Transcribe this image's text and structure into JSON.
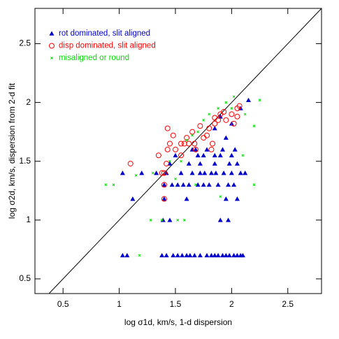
{
  "chart_data": {
    "type": "scatter",
    "x_label": "log σ1d, km/s, 1-d dispersion",
    "y_label": "log σ2d, km/s, dispersion from 2-d fit",
    "xlim": [
      0.25,
      2.8
    ],
    "ylim": [
      0.375,
      2.8
    ],
    "xticks": [
      0.5,
      1,
      1.5,
      2,
      2.5
    ],
    "yticks": [
      0.5,
      1,
      1.5,
      2,
      2.5
    ],
    "identity_line": true,
    "legend": "upper left",
    "series": [
      {
        "name": "rot dominated, slit aligned",
        "color": "#0000cc",
        "marker": "triangle",
        "x": [
          1.03,
          1.07,
          1.38,
          1.42,
          1.48,
          1.52,
          1.56,
          1.6,
          1.63,
          1.67,
          1.72,
          1.78,
          1.82,
          1.85,
          1.88,
          1.92,
          1.95,
          1.98,
          2.02,
          2.05,
          2.08,
          2.1,
          1.39,
          1.45,
          1.9,
          1.97,
          1.12,
          1.4,
          1.6,
          1.95,
          2.05,
          1.4,
          1.47,
          1.52,
          1.57,
          1.62,
          1.7,
          1.75,
          1.8,
          1.88,
          1.97,
          2.02,
          1.03,
          1.2,
          1.33,
          1.42,
          1.55,
          1.65,
          1.72,
          1.76,
          1.82,
          1.86,
          1.93,
          2.0,
          2.08,
          2.12,
          1.45,
          1.62,
          1.72,
          1.85,
          1.98,
          2.05,
          1.5,
          1.7,
          1.75,
          1.85,
          1.9,
          2.0,
          1.65,
          1.68,
          1.78,
          1.92,
          2.03,
          1.85,
          2.0,
          1.95,
          2.08,
          2.15,
          1.9
        ],
        "values": [
          0.7,
          0.7,
          0.7,
          0.7,
          0.7,
          0.7,
          0.7,
          0.7,
          0.7,
          0.7,
          0.7,
          0.7,
          0.7,
          0.7,
          0.7,
          0.7,
          0.7,
          0.7,
          0.7,
          0.7,
          0.7,
          0.7,
          1.0,
          1.0,
          1.0,
          1.0,
          1.18,
          1.18,
          1.18,
          1.18,
          1.18,
          1.3,
          1.3,
          1.3,
          1.3,
          1.3,
          1.3,
          1.3,
          1.3,
          1.3,
          1.3,
          1.3,
          1.4,
          1.4,
          1.4,
          1.4,
          1.4,
          1.4,
          1.4,
          1.4,
          1.4,
          1.4,
          1.4,
          1.4,
          1.4,
          1.4,
          1.48,
          1.48,
          1.48,
          1.48,
          1.48,
          1.48,
          1.55,
          1.55,
          1.55,
          1.55,
          1.55,
          1.55,
          1.6,
          1.6,
          1.6,
          1.6,
          1.6,
          1.78,
          1.82,
          1.7,
          1.95,
          2.02,
          1.88
        ]
      },
      {
        "name": "disp dominated, slit aligned",
        "color": "#ff0000",
        "marker": "circle",
        "x": [
          1.1,
          1.35,
          1.4,
          1.38,
          1.4,
          1.4,
          1.43,
          1.45,
          1.43,
          1.48,
          1.55,
          1.58,
          1.62,
          1.6,
          1.65,
          1.67,
          1.68,
          1.72,
          1.75,
          1.78,
          1.8,
          1.83,
          1.85,
          1.85,
          1.88,
          1.9,
          1.93,
          1.95,
          2.0,
          2.02,
          2.05,
          2.07,
          2.05,
          1.82,
          1.5,
          1.42,
          1.55
        ],
        "values": [
          1.48,
          1.55,
          1.4,
          1.4,
          1.3,
          1.18,
          1.78,
          1.65,
          1.6,
          1.72,
          1.65,
          1.65,
          1.65,
          1.7,
          1.75,
          1.65,
          1.6,
          1.8,
          1.7,
          1.72,
          1.78,
          1.65,
          1.82,
          1.87,
          1.85,
          1.9,
          1.92,
          1.85,
          1.9,
          1.82,
          1.95,
          1.97,
          1.88,
          1.6,
          1.6,
          1.48,
          1.55
        ]
      },
      {
        "name": "misaligned or round",
        "color": "#00dd00",
        "marker": "x",
        "x": [
          0.88,
          0.95,
          1.15,
          1.28,
          1.38,
          1.52,
          1.58,
          1.18,
          1.3,
          1.45,
          1.55,
          1.6,
          1.7,
          1.75,
          1.8,
          1.88,
          1.95,
          2.0,
          2.12,
          2.2,
          2.25,
          2.1,
          1.9,
          2.2,
          1.68,
          1.5,
          1.65,
          2.02
        ],
        "values": [
          1.3,
          1.3,
          1.38,
          1.0,
          1.0,
          1.0,
          1.0,
          0.7,
          1.4,
          1.5,
          1.5,
          1.68,
          1.75,
          1.85,
          1.9,
          1.95,
          2.0,
          1.95,
          1.9,
          1.8,
          2.02,
          1.55,
          1.2,
          1.3,
          1.3,
          1.35,
          1.72,
          2.05
        ]
      }
    ]
  }
}
